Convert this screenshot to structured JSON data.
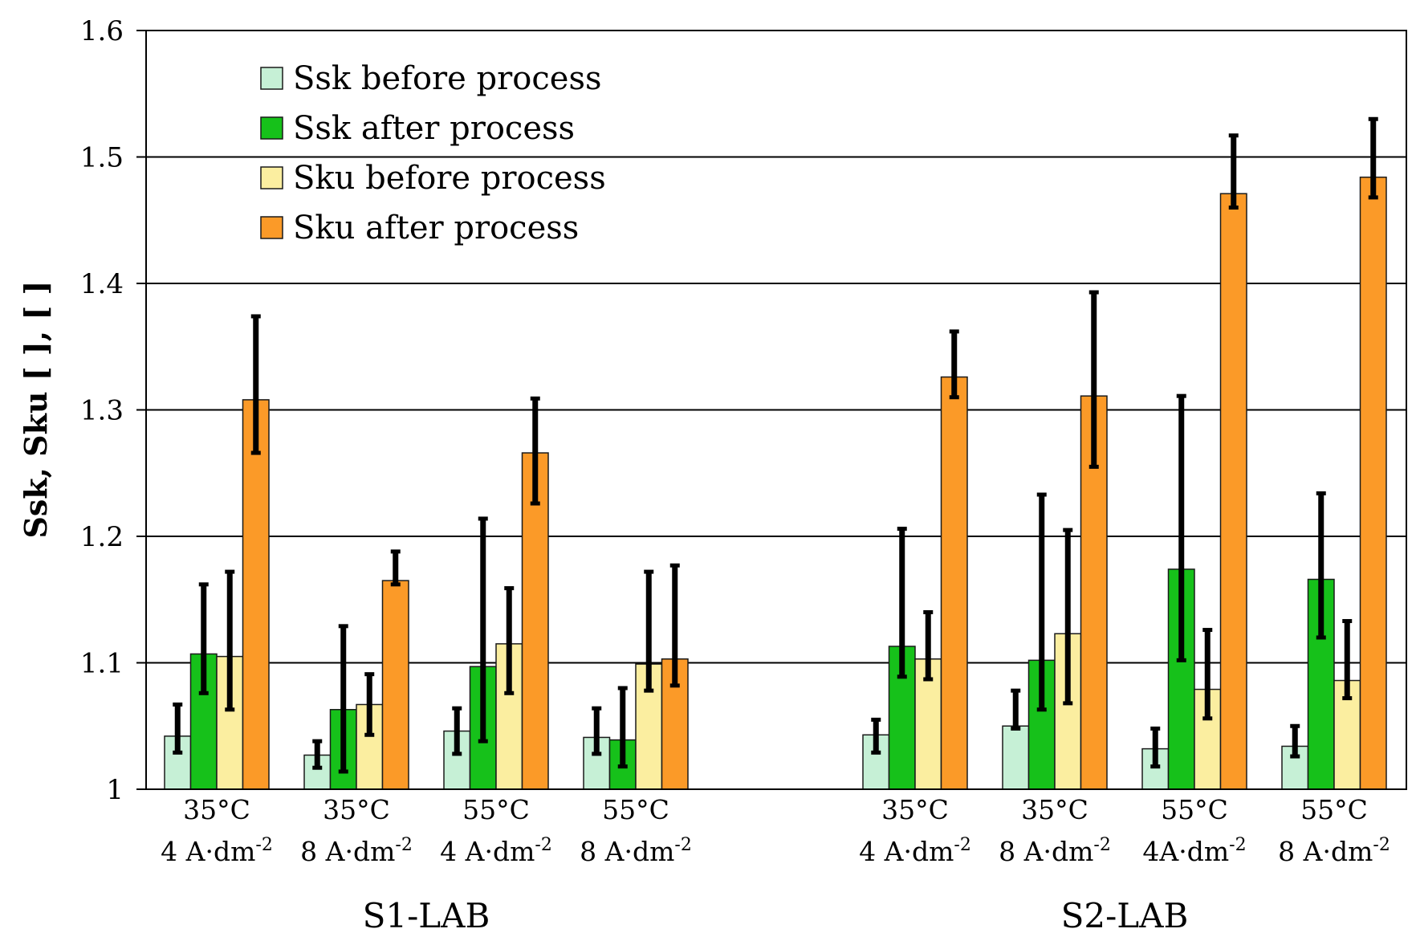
{
  "chart_data": {
    "type": "bar",
    "title": "",
    "xlabel": "",
    "ylabel": "Ssk, Sku   [ ], [ ]",
    "ylim": [
      1,
      1.6
    ],
    "yticks": [
      "1",
      "1.1",
      "1.2",
      "1.3",
      "1.4",
      "1.5",
      "1.6"
    ],
    "grid": true,
    "legend_position": "top-left",
    "groups": [
      {
        "label": "S1-LAB",
        "categories": [
          {
            "line1": "35°C",
            "line2": "4 A·dm",
            "sup": "-2"
          },
          {
            "line1": "35°C",
            "line2": "8 A·dm",
            "sup": "-2"
          },
          {
            "line1": "55°C",
            "line2": "4 A·dm",
            "sup": "-2"
          },
          {
            "line1": "55°C",
            "line2": "8 A·dm",
            "sup": "-2"
          }
        ]
      },
      {
        "label": "S2-LAB",
        "categories": [
          {
            "line1": "35°C",
            "line2": "4 A·dm",
            "sup": "-2"
          },
          {
            "line1": "35°C",
            "line2": "8 A·dm",
            "sup": "-2"
          },
          {
            "line1": "55°C",
            "line2": "4A·dm",
            "sup": "-2"
          },
          {
            "line1": "55°C",
            "line2": "8 A·dm",
            "sup": "-2"
          }
        ]
      }
    ],
    "series": [
      {
        "name": "Ssk before process",
        "color": "#c6f0d6",
        "values": [
          1.042,
          1.027,
          1.046,
          1.041,
          1.043,
          1.05,
          1.032,
          1.034
        ],
        "err_low": [
          1.029,
          1.017,
          1.028,
          1.028,
          1.029,
          1.048,
          1.018,
          1.026
        ],
        "err_high": [
          1.067,
          1.038,
          1.064,
          1.064,
          1.055,
          1.078,
          1.048,
          1.05
        ]
      },
      {
        "name": "Ssk after process",
        "color": "#16c11a",
        "values": [
          1.107,
          1.063,
          1.097,
          1.039,
          1.113,
          1.102,
          1.174,
          1.166
        ],
        "err_low": [
          1.076,
          1.014,
          1.038,
          1.018,
          1.089,
          1.063,
          1.102,
          1.12
        ],
        "err_high": [
          1.162,
          1.129,
          1.214,
          1.08,
          1.206,
          1.233,
          1.311,
          1.234
        ]
      },
      {
        "name": "Sku before process",
        "color": "#fbeea0",
        "values": [
          1.105,
          1.067,
          1.115,
          1.099,
          1.103,
          1.123,
          1.079,
          1.086
        ],
        "err_low": [
          1.063,
          1.043,
          1.076,
          1.078,
          1.087,
          1.068,
          1.056,
          1.072
        ],
        "err_high": [
          1.172,
          1.091,
          1.159,
          1.172,
          1.14,
          1.205,
          1.126,
          1.133
        ]
      },
      {
        "name": "Sku after process",
        "color": "#fb9a28",
        "values": [
          1.308,
          1.165,
          1.266,
          1.103,
          1.326,
          1.311,
          1.471,
          1.484
        ],
        "err_low": [
          1.266,
          1.162,
          1.226,
          1.082,
          1.31,
          1.255,
          1.46,
          1.468
        ],
        "err_high": [
          1.374,
          1.188,
          1.309,
          1.177,
          1.362,
          1.393,
          1.517,
          1.53
        ]
      }
    ]
  }
}
